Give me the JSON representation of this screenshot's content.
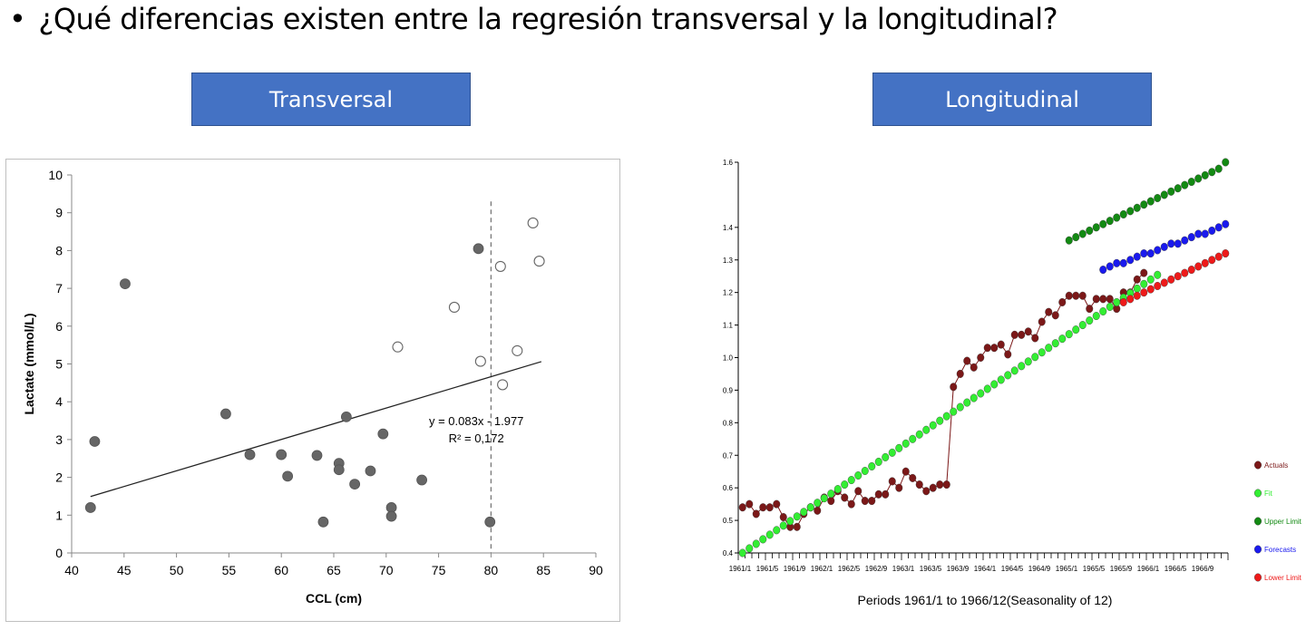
{
  "slide": {
    "bullet": "•",
    "question": "¿Qué diferencias existen entre la regresión transversal y la longitudinal?",
    "left_label": "Transversal",
    "right_label": "Longitudinal"
  },
  "colors": {
    "label_bg": "#4472c4",
    "filled_marker": "#666666",
    "actuals": "#7b1818",
    "fit": "#33ee33",
    "upper_limit": "#138a13",
    "forecasts": "#1a1aee",
    "lower_limit": "#ee1a1a"
  },
  "chart_data": [
    {
      "type": "scatter",
      "title": "",
      "xlabel": "CCL (cm)",
      "ylabel": "Lactate (mmol/L)",
      "xlim": [
        40,
        90
      ],
      "ylim": [
        0,
        10
      ],
      "xticks": [
        40,
        45,
        50,
        55,
        60,
        65,
        70,
        75,
        80,
        85,
        90
      ],
      "yticks": [
        0,
        1,
        2,
        3,
        4,
        5,
        6,
        7,
        8,
        9,
        10
      ],
      "grid": false,
      "vline_x": 80,
      "trendline": {
        "x": [
          41.8,
          84.8
        ],
        "equation": "y = 0.083x - 1.977",
        "r2": "R² = 0,172"
      },
      "series": [
        {
          "marker": "filled",
          "points": [
            [
              41.8,
              1.2
            ],
            [
              42.2,
              2.95
            ],
            [
              45.1,
              7.12
            ],
            [
              54.7,
              3.68
            ],
            [
              57.0,
              2.6
            ],
            [
              60.0,
              2.6
            ],
            [
              60.6,
              2.03
            ],
            [
              63.4,
              2.58
            ],
            [
              64.0,
              0.82
            ],
            [
              65.5,
              2.37
            ],
            [
              65.5,
              2.2
            ],
            [
              66.2,
              3.6
            ],
            [
              67.0,
              1.82
            ],
            [
              68.5,
              2.17
            ],
            [
              69.7,
              3.15
            ],
            [
              70.5,
              1.2
            ],
            [
              70.5,
              0.97
            ],
            [
              73.4,
              1.93
            ],
            [
              78.8,
              8.05
            ],
            [
              79.9,
              0.82
            ]
          ]
        },
        {
          "marker": "open",
          "points": [
            [
              71.1,
              5.45
            ],
            [
              76.5,
              6.5
            ],
            [
              79.0,
              5.07
            ],
            [
              80.9,
              7.58
            ],
            [
              81.1,
              4.45
            ],
            [
              82.5,
              5.35
            ],
            [
              84.0,
              8.73
            ],
            [
              84.6,
              7.72
            ]
          ]
        }
      ]
    },
    {
      "type": "line",
      "title": "",
      "xlabel": "Periods 1961/1 to 1966/12(Seasonality of 12)",
      "ylabel": "",
      "ylim": [
        0.4,
        1.6
      ],
      "yticks": [
        "0.4",
        "0.5",
        "0.6",
        "0.7",
        "0.8",
        "0.9",
        "1.0",
        "1.1",
        "1.2",
        "1.3",
        "1.4",
        "1.6"
      ],
      "xtick_labels": [
        "1961/1",
        "1961/5",
        "1961/9",
        "1962/1",
        "1962/5",
        "1962/9",
        "1963/1",
        "1963/5",
        "1963/9",
        "1964/1",
        "1964/5",
        "1964/9",
        "1965/1",
        "1965/5",
        "1965/9",
        "1966/1",
        "1966/5",
        "1966/9"
      ],
      "legend_position": "right",
      "series": [
        {
          "name": "Actuals",
          "color": "#7b1818",
          "connected": true,
          "values": [
            0.54,
            0.55,
            0.52,
            0.54,
            0.54,
            0.55,
            0.51,
            0.48,
            0.48,
            0.52,
            0.54,
            0.53,
            0.57,
            0.56,
            0.59,
            0.57,
            0.55,
            0.59,
            0.56,
            0.56,
            0.58,
            0.58,
            0.62,
            0.6,
            0.65,
            0.63,
            0.61,
            0.59,
            0.6,
            0.61,
            0.61,
            0.91,
            0.95,
            0.99,
            0.97,
            1.0,
            1.03,
            1.03,
            1.04,
            1.01,
            1.07,
            1.07,
            1.08,
            1.06,
            1.11,
            1.14,
            1.13,
            1.17,
            1.19,
            1.19,
            1.19,
            1.15,
            1.18,
            1.18,
            1.18,
            1.15,
            1.2,
            1.2,
            1.24,
            1.26
          ]
        },
        {
          "name": "Fit",
          "color": "#33ee33",
          "connected": false,
          "values": [
            0.4,
            0.414,
            0.428,
            0.442,
            0.456,
            0.47,
            0.484,
            0.498,
            0.512,
            0.526,
            0.54,
            0.554,
            0.568,
            0.582,
            0.596,
            0.61,
            0.624,
            0.638,
            0.652,
            0.666,
            0.68,
            0.694,
            0.708,
            0.722,
            0.736,
            0.75,
            0.764,
            0.778,
            0.792,
            0.806,
            0.82,
            0.834,
            0.848,
            0.862,
            0.876,
            0.89,
            0.904,
            0.918,
            0.932,
            0.946,
            0.96,
            0.974,
            0.988,
            1.002,
            1.016,
            1.03,
            1.044,
            1.058,
            1.072,
            1.086,
            1.1,
            1.114,
            1.128,
            1.142,
            1.156,
            1.17,
            1.184,
            1.198,
            1.212,
            1.226,
            1.24,
            1.254
          ]
        },
        {
          "name": "Upper Limit",
          "color": "#138a13",
          "connected": false,
          "values": [
            1.36,
            1.37,
            1.38,
            1.39,
            1.4,
            1.41,
            1.42,
            1.43,
            1.44,
            1.45,
            1.46,
            1.47,
            1.48,
            1.49,
            1.5,
            1.51,
            1.52,
            1.53,
            1.54,
            1.55,
            1.56,
            1.57,
            1.58,
            1.6
          ]
        },
        {
          "name": "Forecasts",
          "color": "#1a1aee",
          "connected": false,
          "values": [
            1.27,
            1.28,
            1.29,
            1.29,
            1.3,
            1.31,
            1.32,
            1.32,
            1.33,
            1.34,
            1.35,
            1.35,
            1.36,
            1.37,
            1.38,
            1.38,
            1.39,
            1.4,
            1.41
          ]
        },
        {
          "name": "Lower Limit",
          "color": "#ee1a1a",
          "connected": false,
          "values": [
            1.17,
            1.18,
            1.19,
            1.2,
            1.21,
            1.22,
            1.23,
            1.24,
            1.25,
            1.26,
            1.27,
            1.28,
            1.29,
            1.3,
            1.31,
            1.32
          ]
        }
      ]
    }
  ]
}
